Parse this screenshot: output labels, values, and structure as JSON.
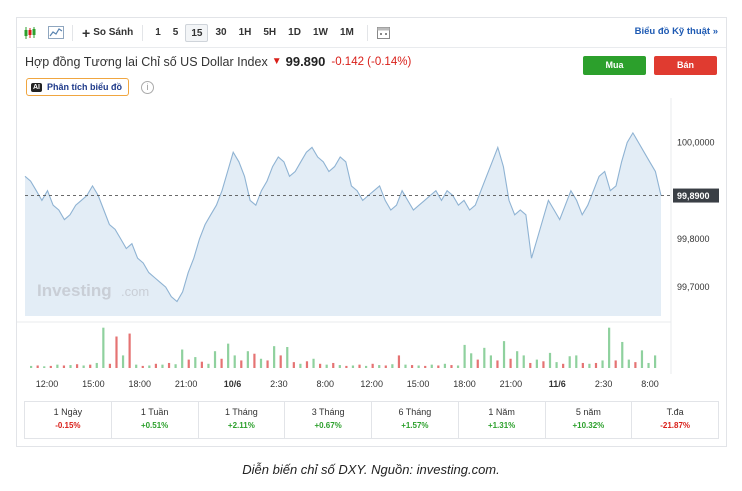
{
  "toolbar": {
    "candle_icon": "candlestick-icon",
    "area_icon": "area-chart-icon",
    "compare_label": "So Sánh",
    "intervals": [
      "1",
      "5",
      "15",
      "30",
      "1H",
      "5H",
      "1D",
      "1W",
      "1M"
    ],
    "active_interval": "15",
    "calendar_icon": "calendar-icon",
    "tech_chart_label": "Biểu đồ Kỹ thuật »"
  },
  "header": {
    "title": "Hợp đồng Tương lai Chỉ số US Dollar Index",
    "price": "99.890",
    "change": "-0.142 (-0.14%)",
    "buy_label": "Mua",
    "sell_label": "Bán",
    "ai_badge": "AI",
    "analyze_label": "Phân tích biểu đồ",
    "info_symbol": "i"
  },
  "colors": {
    "up": "#2ca02c",
    "down": "#d91e18",
    "line": "#8fb3d3",
    "area": "#e3edf6",
    "link": "#1e5ab3"
  },
  "watermark": {
    "brand": "Investing",
    "suffix": ".com"
  },
  "chart_data": {
    "type": "area",
    "current_value_label": "99,8900",
    "y_ticks": [
      "100,0000",
      "99,8000",
      "99,7000"
    ],
    "y_tick_values": [
      100.0,
      99.8,
      99.7
    ],
    "current_value": 99.89,
    "ylim": [
      99.64,
      100.08
    ],
    "x_ticks": [
      "12:00",
      "15:00",
      "18:00",
      "21:00",
      "10/6",
      "2:30",
      "8:00",
      "12:00",
      "15:00",
      "18:00",
      "21:00",
      "11/6",
      "2:30",
      "8:00"
    ],
    "values": [
      99.93,
      99.92,
      99.9,
      99.88,
      99.9,
      99.87,
      99.86,
      99.84,
      99.85,
      99.87,
      99.88,
      99.89,
      99.91,
      99.89,
      99.86,
      99.83,
      99.82,
      99.8,
      99.78,
      99.79,
      99.76,
      99.75,
      99.73,
      99.72,
      99.71,
      99.7,
      99.68,
      99.67,
      99.69,
      99.73,
      99.76,
      99.8,
      99.83,
      99.85,
      99.87,
      99.9,
      99.94,
      99.98,
      99.96,
      99.93,
      99.88,
      99.87,
      99.9,
      99.92,
      99.95,
      99.97,
      99.96,
      99.93,
      99.94,
      99.96,
      99.98,
      99.99,
      99.97,
      99.96,
      99.94,
      99.95,
      99.97,
      99.96,
      99.91,
      99.9,
      99.88,
      99.89,
      99.9,
      99.91,
      99.88,
      99.86,
      99.87,
      99.9,
      99.88,
      99.86,
      99.87,
      99.88,
      99.89,
      99.9,
      99.88,
      99.9,
      99.89,
      99.87,
      99.88,
      99.86,
      99.87,
      99.9,
      99.93,
      99.96,
      99.99,
      99.95,
      99.88,
      99.85,
      99.86,
      99.85,
      99.76,
      99.8,
      99.84,
      99.88,
      99.86,
      99.84,
      99.87,
      99.9,
      99.88,
      99.85,
      99.87,
      99.9,
      99.93,
      99.94,
      99.9,
      99.91,
      99.96,
      100.0,
      100.02,
      100.0,
      99.98,
      99.96,
      99.94,
      99.89
    ],
    "volume_bars": [
      {
        "v": 0.05,
        "dir": "up"
      },
      {
        "v": 0.06,
        "dir": "down"
      },
      {
        "v": 0.04,
        "dir": "up"
      },
      {
        "v": 0.05,
        "dir": "down"
      },
      {
        "v": 0.08,
        "dir": "up"
      },
      {
        "v": 0.06,
        "dir": "down"
      },
      {
        "v": 0.07,
        "dir": "up"
      },
      {
        "v": 0.09,
        "dir": "down"
      },
      {
        "v": 0.06,
        "dir": "up"
      },
      {
        "v": 0.08,
        "dir": "down"
      },
      {
        "v": 0.12,
        "dir": "up"
      },
      {
        "v": 0.96,
        "dir": "up"
      },
      {
        "v": 0.1,
        "dir": "down"
      },
      {
        "v": 0.75,
        "dir": "down"
      },
      {
        "v": 0.3,
        "dir": "up"
      },
      {
        "v": 0.82,
        "dir": "down"
      },
      {
        "v": 0.08,
        "dir": "up"
      },
      {
        "v": 0.05,
        "dir": "down"
      },
      {
        "v": 0.06,
        "dir": "up"
      },
      {
        "v": 0.1,
        "dir": "down"
      },
      {
        "v": 0.08,
        "dir": "up"
      },
      {
        "v": 0.12,
        "dir": "down"
      },
      {
        "v": 0.09,
        "dir": "up"
      },
      {
        "v": 0.44,
        "dir": "up"
      },
      {
        "v": 0.2,
        "dir": "down"
      },
      {
        "v": 0.26,
        "dir": "up"
      },
      {
        "v": 0.15,
        "dir": "down"
      },
      {
        "v": 0.1,
        "dir": "up"
      },
      {
        "v": 0.4,
        "dir": "up"
      },
      {
        "v": 0.22,
        "dir": "down"
      },
      {
        "v": 0.58,
        "dir": "up"
      },
      {
        "v": 0.3,
        "dir": "up"
      },
      {
        "v": 0.18,
        "dir": "down"
      },
      {
        "v": 0.4,
        "dir": "up"
      },
      {
        "v": 0.34,
        "dir": "down"
      },
      {
        "v": 0.22,
        "dir": "up"
      },
      {
        "v": 0.18,
        "dir": "down"
      },
      {
        "v": 0.52,
        "dir": "up"
      },
      {
        "v": 0.3,
        "dir": "down"
      },
      {
        "v": 0.5,
        "dir": "up"
      },
      {
        "v": 0.14,
        "dir": "down"
      },
      {
        "v": 0.1,
        "dir": "up"
      },
      {
        "v": 0.16,
        "dir": "down"
      },
      {
        "v": 0.22,
        "dir": "up"
      },
      {
        "v": 0.1,
        "dir": "down"
      },
      {
        "v": 0.08,
        "dir": "up"
      },
      {
        "v": 0.12,
        "dir": "down"
      },
      {
        "v": 0.07,
        "dir": "up"
      },
      {
        "v": 0.05,
        "dir": "down"
      },
      {
        "v": 0.06,
        "dir": "up"
      },
      {
        "v": 0.08,
        "dir": "down"
      },
      {
        "v": 0.05,
        "dir": "up"
      },
      {
        "v": 0.1,
        "dir": "down"
      },
      {
        "v": 0.07,
        "dir": "up"
      },
      {
        "v": 0.06,
        "dir": "down"
      },
      {
        "v": 0.09,
        "dir": "up"
      },
      {
        "v": 0.3,
        "dir": "down"
      },
      {
        "v": 0.08,
        "dir": "up"
      },
      {
        "v": 0.07,
        "dir": "down"
      },
      {
        "v": 0.06,
        "dir": "up"
      },
      {
        "v": 0.05,
        "dir": "down"
      },
      {
        "v": 0.08,
        "dir": "up"
      },
      {
        "v": 0.06,
        "dir": "down"
      },
      {
        "v": 0.1,
        "dir": "up"
      },
      {
        "v": 0.07,
        "dir": "down"
      },
      {
        "v": 0.06,
        "dir": "up"
      },
      {
        "v": 0.55,
        "dir": "up"
      },
      {
        "v": 0.35,
        "dir": "up"
      },
      {
        "v": 0.2,
        "dir": "down"
      },
      {
        "v": 0.48,
        "dir": "up"
      },
      {
        "v": 0.3,
        "dir": "up"
      },
      {
        "v": 0.18,
        "dir": "down"
      },
      {
        "v": 0.64,
        "dir": "up"
      },
      {
        "v": 0.22,
        "dir": "down"
      },
      {
        "v": 0.4,
        "dir": "up"
      },
      {
        "v": 0.3,
        "dir": "up"
      },
      {
        "v": 0.12,
        "dir": "down"
      },
      {
        "v": 0.2,
        "dir": "up"
      },
      {
        "v": 0.16,
        "dir": "down"
      },
      {
        "v": 0.36,
        "dir": "up"
      },
      {
        "v": 0.14,
        "dir": "up"
      },
      {
        "v": 0.1,
        "dir": "down"
      },
      {
        "v": 0.28,
        "dir": "up"
      },
      {
        "v": 0.3,
        "dir": "up"
      },
      {
        "v": 0.12,
        "dir": "down"
      },
      {
        "v": 0.1,
        "dir": "up"
      },
      {
        "v": 0.12,
        "dir": "down"
      },
      {
        "v": 0.18,
        "dir": "up"
      },
      {
        "v": 0.96,
        "dir": "up"
      },
      {
        "v": 0.18,
        "dir": "down"
      },
      {
        "v": 0.62,
        "dir": "up"
      },
      {
        "v": 0.2,
        "dir": "up"
      },
      {
        "v": 0.14,
        "dir": "down"
      },
      {
        "v": 0.42,
        "dir": "up"
      },
      {
        "v": 0.12,
        "dir": "up"
      },
      {
        "v": 0.3,
        "dir": "up"
      }
    ]
  },
  "performance": [
    {
      "label": "1 Ngày",
      "value": "-0.15%",
      "dir": "down"
    },
    {
      "label": "1 Tuần",
      "value": "+0.51%",
      "dir": "up"
    },
    {
      "label": "1 Tháng",
      "value": "+2.11%",
      "dir": "up"
    },
    {
      "label": "3 Tháng",
      "value": "+0.67%",
      "dir": "up"
    },
    {
      "label": "6 Tháng",
      "value": "+1.57%",
      "dir": "up"
    },
    {
      "label": "1 Năm",
      "value": "+1.31%",
      "dir": "up"
    },
    {
      "label": "5 năm",
      "value": "+10.32%",
      "dir": "up"
    },
    {
      "label": "T.đa",
      "value": "-21.87%",
      "dir": "down"
    }
  ],
  "caption": "Diễn biến chỉ số DXY. Nguồn: investing.com."
}
